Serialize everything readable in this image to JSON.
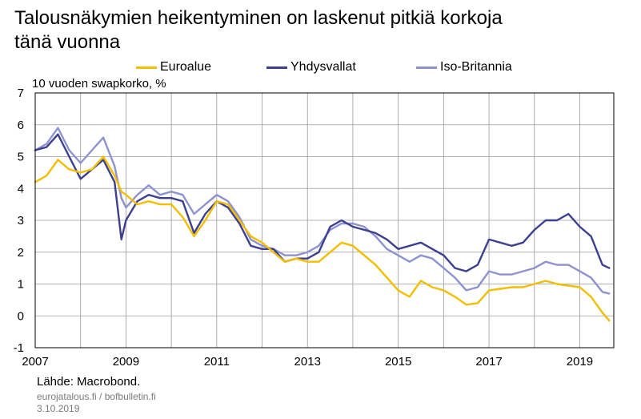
{
  "chart": {
    "title": "Talousnäkymien heikentyminen on laskenut pitkiä korkoja\ntänä vuonna",
    "unit_label": "10 vuoden swapkorko, %",
    "source": "Lähde: Macrobond.",
    "site": "eurojatalous.fi  / bofbulletin.fi",
    "date": "3.10.2019"
  },
  "legend": [
    {
      "label": "Euroalue",
      "color": "#F2BE00"
    },
    {
      "label": "Yhdysvallat",
      "color": "#3D3F8F"
    },
    {
      "label": "Iso-Britannia",
      "color": "#8E92CF"
    }
  ],
  "chart_data": {
    "type": "line",
    "title": "Talousnäkymien heikentyminen on laskenut pitkiä korkoja tänä vuonna",
    "ylabel": "10 vuoden swapkorko, %",
    "xlabel": "",
    "xlim": [
      2007.0,
      2019.75
    ],
    "ylim": [
      -1,
      7
    ],
    "yticks": [
      -1,
      0,
      1,
      2,
      3,
      4,
      5,
      6,
      7
    ],
    "xticks": [
      "2007",
      "2009",
      "2011",
      "2013",
      "2015",
      "2017",
      "2019"
    ],
    "grid": true,
    "legend_position": "top",
    "x": [
      2007.0,
      2007.25,
      2007.5,
      2007.75,
      2008.0,
      2008.25,
      2008.5,
      2008.75,
      2008.9,
      2009.0,
      2009.25,
      2009.5,
      2009.75,
      2010.0,
      2010.25,
      2010.5,
      2010.75,
      2011.0,
      2011.25,
      2011.5,
      2011.75,
      2012.0,
      2012.25,
      2012.5,
      2012.75,
      2013.0,
      2013.25,
      2013.5,
      2013.75,
      2014.0,
      2014.25,
      2014.5,
      2014.75,
      2015.0,
      2015.25,
      2015.5,
      2015.75,
      2016.0,
      2016.25,
      2016.5,
      2016.75,
      2017.0,
      2017.25,
      2017.5,
      2017.75,
      2018.0,
      2018.25,
      2018.5,
      2018.75,
      2019.0,
      2019.25,
      2019.5,
      2019.65
    ],
    "series": [
      {
        "name": "Euroalue",
        "color": "#F2BE00",
        "values": [
          4.2,
          4.4,
          4.9,
          4.6,
          4.5,
          4.6,
          5.0,
          4.4,
          3.9,
          3.8,
          3.5,
          3.6,
          3.5,
          3.5,
          3.1,
          2.5,
          3.0,
          3.6,
          3.5,
          3.0,
          2.5,
          2.3,
          2.0,
          1.7,
          1.8,
          1.7,
          1.7,
          2.0,
          2.3,
          2.2,
          1.9,
          1.6,
          1.2,
          0.8,
          0.6,
          1.1,
          0.9,
          0.8,
          0.6,
          0.35,
          0.4,
          0.8,
          0.85,
          0.9,
          0.9,
          1.0,
          1.1,
          1.0,
          0.95,
          0.9,
          0.6,
          0.1,
          -0.15
        ]
      },
      {
        "name": "Yhdysvallat",
        "color": "#3D3F8F",
        "values": [
          5.2,
          5.3,
          5.7,
          5.0,
          4.3,
          4.6,
          4.9,
          4.2,
          2.4,
          3.0,
          3.6,
          3.8,
          3.7,
          3.7,
          3.6,
          2.6,
          3.2,
          3.6,
          3.4,
          2.9,
          2.2,
          2.1,
          2.1,
          1.7,
          1.8,
          1.8,
          2.0,
          2.8,
          3.0,
          2.8,
          2.7,
          2.6,
          2.4,
          2.1,
          2.2,
          2.3,
          2.1,
          1.9,
          1.5,
          1.4,
          1.6,
          2.4,
          2.3,
          2.2,
          2.3,
          2.7,
          3.0,
          3.0,
          3.2,
          2.8,
          2.5,
          1.6,
          1.5
        ]
      },
      {
        "name": "Iso-Britannia",
        "color": "#8E92CF",
        "values": [
          5.2,
          5.4,
          5.9,
          5.2,
          4.8,
          5.2,
          5.6,
          4.7,
          3.7,
          3.4,
          3.8,
          4.1,
          3.8,
          3.9,
          3.8,
          3.2,
          3.5,
          3.8,
          3.6,
          3.1,
          2.4,
          2.2,
          2.1,
          1.9,
          1.9,
          2.0,
          2.2,
          2.7,
          2.9,
          2.9,
          2.8,
          2.5,
          2.1,
          1.9,
          1.7,
          1.9,
          1.8,
          1.5,
          1.2,
          0.8,
          0.9,
          1.4,
          1.3,
          1.3,
          1.4,
          1.5,
          1.7,
          1.6,
          1.6,
          1.4,
          1.2,
          0.75,
          0.7
        ]
      }
    ]
  }
}
